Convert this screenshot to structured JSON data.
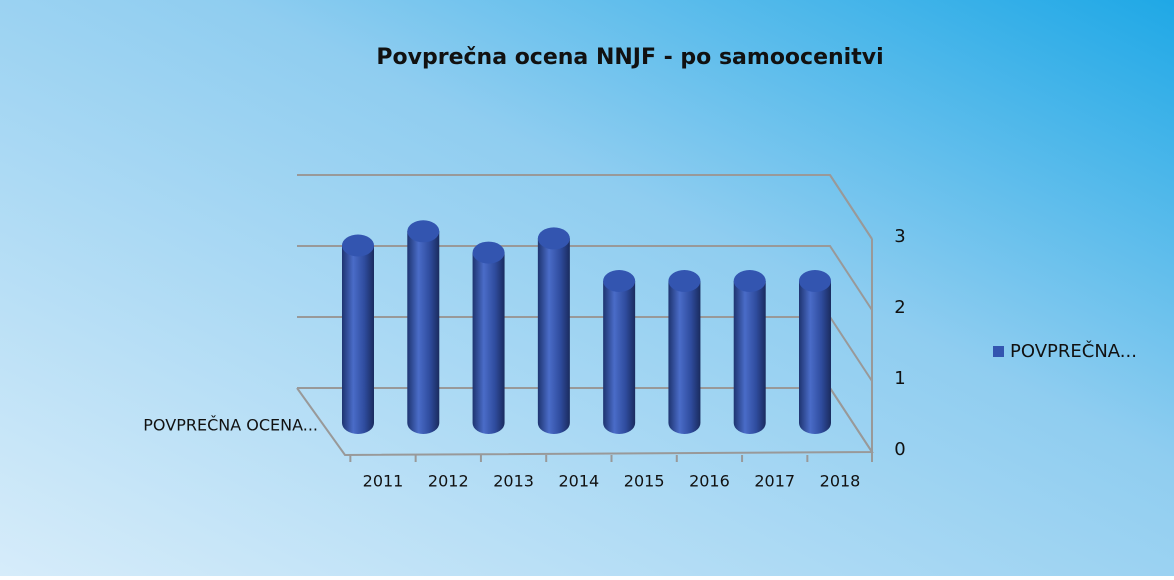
{
  "chart_data": {
    "type": "bar3d",
    "title": "Povprečna ocena NNJF - po samoocenitvi",
    "categories": [
      "2011",
      "2012",
      "2013",
      "2014",
      "2015",
      "2016",
      "2017",
      "2018"
    ],
    "series": [
      {
        "name": "POVPREČNA...",
        "color": "#3355b0",
        "values": [
          2.5,
          2.7,
          2.4,
          2.6,
          2.0,
          2.0,
          2.0,
          2.0
        ]
      }
    ],
    "depth_label": "POVPREČNA OCENA...",
    "ylim": [
      0,
      3
    ],
    "yticks": [
      0,
      1,
      2,
      3
    ],
    "grid": true,
    "legend": "right"
  }
}
